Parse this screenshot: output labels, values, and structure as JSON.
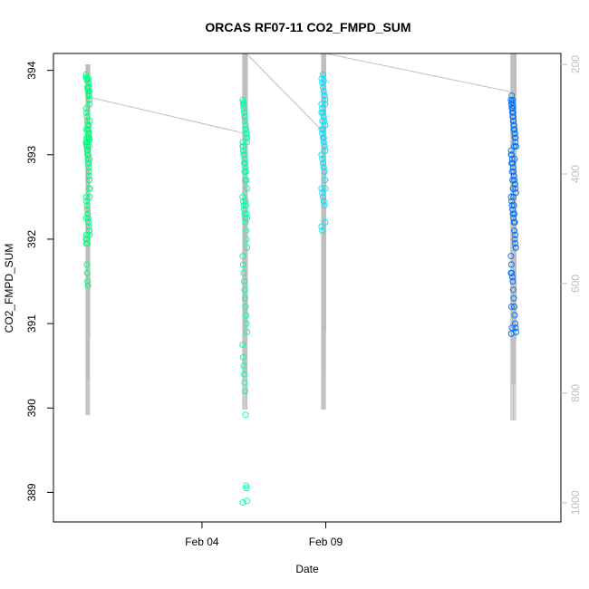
{
  "chart_data": {
    "type": "scatter",
    "title": "ORCAS RF07-11 CO2_FMPD_SUM",
    "xlabel": "Date",
    "ylabel": "CO2_FMPD_SUM",
    "xlim": [
      "2016-01-29T00:00",
      "2016-02-18T12:00"
    ],
    "ylim": [
      388.65,
      394.2
    ],
    "x_ticks": [
      {
        "date": "2016-02-04T00:00",
        "label": "Feb 04"
      },
      {
        "date": "2016-02-09T00:00",
        "label": "Feb 09"
      }
    ],
    "y_ticks": [
      389,
      390,
      391,
      392,
      393,
      394
    ],
    "y2_lim": [
      1035,
      180
    ],
    "y2_ticks": [
      200,
      400,
      600,
      800,
      1000
    ],
    "colors": {
      "flight1": "#00ff7f",
      "flight2": "#00ffb3",
      "flight3": "#00e5ff",
      "flight4": "#0073ff",
      "altitude_trace": "#bfbfbf"
    },
    "flights": [
      {
        "start": "2016-01-30T07:30",
        "end": "2016-01-30T11:15",
        "color": "#00ff7f",
        "values": [
          393.95,
          393.92,
          393.9,
          393.88,
          393.8,
          393.78,
          393.75,
          393.72,
          393.7,
          393.65,
          393.6,
          393.55,
          393.5,
          393.45,
          393.4,
          393.35,
          393.3,
          393.28,
          393.25,
          393.2,
          393.18,
          393.15,
          393.12,
          393.1,
          393.05,
          393.0,
          392.95,
          392.9,
          392.85,
          392.8,
          392.7,
          392.6,
          392.5,
          392.45,
          392.4,
          392.35,
          392.3,
          392.25,
          392.2,
          392.15,
          392.1,
          392.05,
          392.0,
          391.95,
          391.7,
          391.6,
          391.5,
          391.45,
          393.9,
          393.85,
          393.8,
          393.75,
          393.4,
          393.3,
          393.2,
          393.15,
          393.1,
          393.05,
          393.0,
          392.9,
          392.75,
          392.6,
          392.5,
          392.25,
          392.05,
          392.0,
          391.95,
          393.3,
          393.2,
          393.25,
          393.35,
          393.1,
          392.95
        ]
      },
      {
        "start": "2016-02-05T15:30",
        "end": "2016-02-05T20:00",
        "color": "#00ffb3",
        "values": [
          393.65,
          393.6,
          393.55,
          393.5,
          393.45,
          393.4,
          393.35,
          393.3,
          393.25,
          393.2,
          393.15,
          393.1,
          393.05,
          393.0,
          392.95,
          392.9,
          392.85,
          392.8,
          392.7,
          392.6,
          392.5,
          392.45,
          392.4,
          392.35,
          392.3,
          392.25,
          392.2,
          392.1,
          392.0,
          391.9,
          391.8,
          391.7,
          391.6,
          391.5,
          391.4,
          391.3,
          391.2,
          391.1,
          391.0,
          390.9,
          390.75,
          390.6,
          390.5,
          390.4,
          390.3,
          390.2,
          389.92,
          389.08,
          389.05,
          388.9,
          388.88,
          393.62,
          393.58,
          393.5,
          393.45,
          393.4,
          393.3,
          393.25,
          393.2,
          393.15,
          393.1,
          393.05,
          393.0,
          392.9,
          392.8,
          392.7,
          392.45,
          392.4,
          392.3,
          392.25
        ]
      },
      {
        "start": "2016-02-08T20:00",
        "end": "2016-02-09T00:00",
        "color": "#00e5ff",
        "values": [
          393.9,
          393.85,
          393.8,
          393.75,
          393.7,
          393.65,
          393.6,
          393.55,
          393.5,
          393.45,
          393.4,
          393.35,
          393.3,
          393.25,
          393.2,
          393.15,
          393.1,
          393.05,
          393.0,
          392.95,
          392.9,
          392.85,
          392.8,
          392.7,
          392.6,
          392.55,
          392.5,
          392.45,
          392.4,
          392.2,
          392.15,
          392.1,
          393.95,
          393.88,
          393.7,
          393.6,
          393.5,
          393.4,
          393.3,
          393.2,
          393.1,
          392.6
        ]
      },
      {
        "start": "2016-02-16T11:30",
        "end": "2016-02-16T16:30",
        "color": "#0073ff",
        "values": [
          393.65,
          393.6,
          393.55,
          393.5,
          393.45,
          393.4,
          393.35,
          393.3,
          393.25,
          393.2,
          393.15,
          393.1,
          393.05,
          393.0,
          392.95,
          392.9,
          392.85,
          392.8,
          392.75,
          392.7,
          392.65,
          392.6,
          392.55,
          392.5,
          392.45,
          392.4,
          392.35,
          392.3,
          392.25,
          392.2,
          392.1,
          392.0,
          391.95,
          391.9,
          391.8,
          391.7,
          391.6,
          391.55,
          391.5,
          391.4,
          391.3,
          391.2,
          391.1,
          391.0,
          390.95,
          390.9,
          390.88,
          393.7,
          393.62,
          393.55,
          393.5,
          393.4,
          393.35,
          393.3,
          393.25,
          393.2,
          393.1,
          393.0,
          392.9,
          392.8,
          392.7,
          392.6,
          392.5,
          392.4,
          392.3,
          392.2,
          392.05,
          391.9,
          391.6,
          391.2,
          390.95,
          393.65,
          393.58,
          393.45,
          393.3,
          393.1,
          392.95,
          392.65,
          392.55
        ]
      }
    ],
    "altitude_bands": [
      {
        "start": "2016-01-30T07:30",
        "end": "2016-01-30T11:15",
        "min": 200,
        "max": 840
      },
      {
        "start": "2016-02-05T15:30",
        "end": "2016-02-05T20:00",
        "min": 180,
        "max": 830
      },
      {
        "start": "2016-02-08T20:00",
        "end": "2016-02-09T00:00",
        "min": 180,
        "max": 830
      },
      {
        "start": "2016-02-16T11:30",
        "end": "2016-02-16T16:30",
        "min": 180,
        "max": 850
      }
    ],
    "transit_lines": [
      {
        "from": [
          "2016-01-30T11:15",
          260
        ],
        "to": [
          "2016-02-05T15:30",
          325
        ]
      },
      {
        "from": [
          "2016-02-05T19:00",
          180
        ],
        "to": [
          "2016-02-08T20:00",
          320
        ]
      },
      {
        "from": [
          "2016-02-09T00:00",
          170
        ],
        "to": [
          "2016-02-16T11:30",
          250
        ]
      }
    ]
  }
}
